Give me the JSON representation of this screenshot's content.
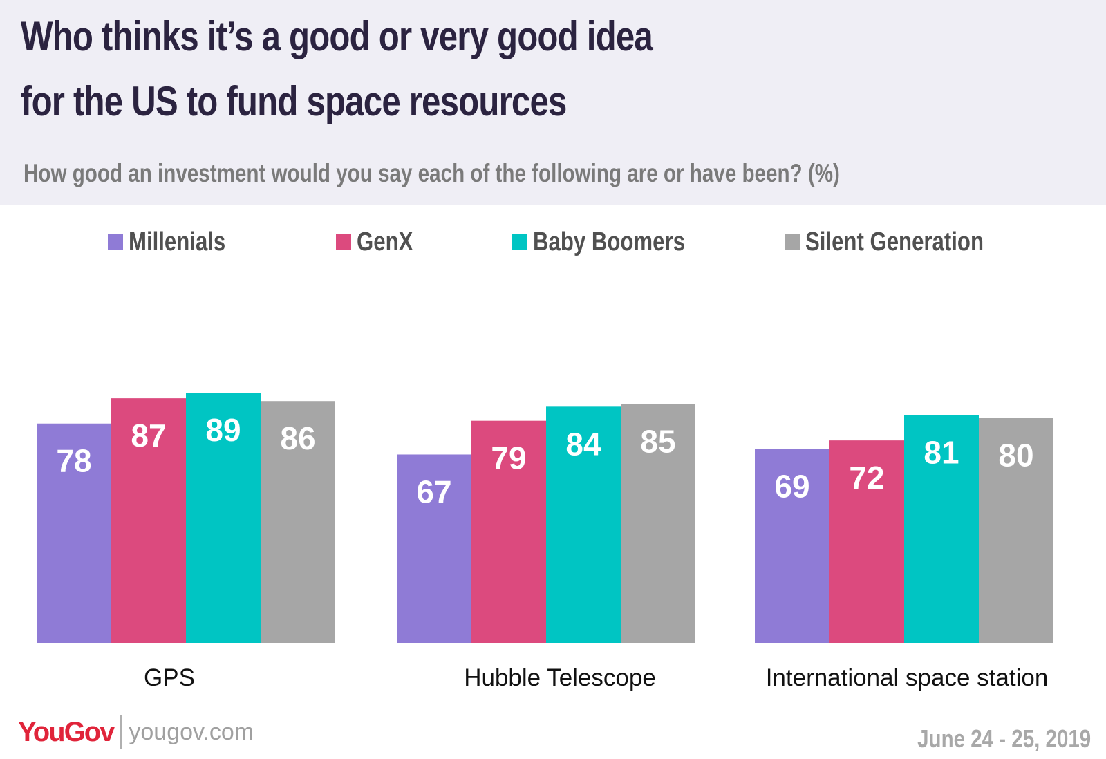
{
  "header": {
    "title_line1": "Who thinks it’s a good or very good idea",
    "title_line2": "for the US to fund space resources",
    "subtitle": "How good an investment would you say each of the following are or have been? (%)"
  },
  "chart_data": {
    "type": "bar",
    "title": "Who thinks it’s a good or very good idea for the US to fund space resources",
    "subtitle": "How good an investment would you say each of the following are or have been? (%)",
    "categories": [
      "GPS",
      "Hubble Telescope",
      "International space station"
    ],
    "series": [
      {
        "name": "Millenials",
        "color": "#8f7bd6",
        "values": [
          78,
          67,
          69
        ]
      },
      {
        "name": "GenX",
        "color": "#dc4a7e",
        "values": [
          87,
          79,
          72
        ]
      },
      {
        "name": "Baby Boomers",
        "color": "#00c5c3",
        "values": [
          89,
          84,
          81
        ]
      },
      {
        "name": "Silent Generation",
        "color": "#a6a6a6",
        "values": [
          86,
          85,
          80
        ]
      }
    ],
    "legend_position": "top",
    "data_labels": true,
    "grid": false,
    "ylim": [
      0,
      100
    ]
  },
  "footer": {
    "logo_text": "YouGov",
    "url": "yougov.com",
    "date": "June 24 - 25, 2019"
  }
}
